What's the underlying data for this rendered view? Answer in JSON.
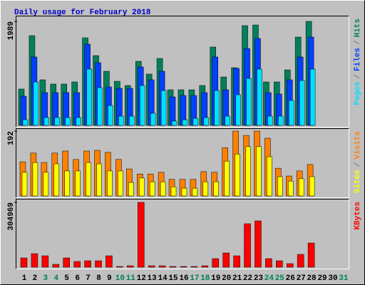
{
  "chart_data": {
    "type": "bar",
    "title": "Daily usage for February 2018",
    "categories": [
      "1",
      "2",
      "3",
      "4",
      "5",
      "6",
      "7",
      "8",
      "9",
      "10",
      "11",
      "12",
      "13",
      "14",
      "15",
      "16",
      "17",
      "18",
      "19",
      "20",
      "21",
      "22",
      "23",
      "24",
      "25",
      "26",
      "27",
      "28",
      "29",
      "30",
      "31"
    ],
    "category_colors": [
      "#000000",
      "#000000",
      "#00805c",
      "#00805c",
      "#000000",
      "#000000",
      "#000000",
      "#000000",
      "#000000",
      "#00805c",
      "#00805c",
      "#000000",
      "#000000",
      "#000000",
      "#000000",
      "#000000",
      "#00805c",
      "#00805c",
      "#000000",
      "#000000",
      "#000000",
      "#000000",
      "#000000",
      "#00805c",
      "#00805c",
      "#000000",
      "#000000",
      "#000000",
      "#000000",
      "#000000",
      "#00805c"
    ],
    "legend_separator": "/",
    "panels": [
      {
        "ylim": [
          0,
          1989
        ],
        "yticks": [
          1989
        ],
        "series": [
          {
            "name": "Hits",
            "color": "#00805c",
            "values": [
              695,
              1716,
              872,
              790,
              790,
              831,
              1675,
              1335,
              1035,
              844,
              763,
              1226,
              981,
              1280,
              681,
              681,
              681,
              763,
              1498,
              926,
              1103,
              1907,
              1920,
              831,
              831,
              1062,
              1689,
              1989,
              null,
              null,
              null
            ]
          },
          {
            "name": "Files",
            "color": "#0040ff",
            "values": [
              558,
              1308,
              627,
              627,
              627,
              627,
              1553,
              1199,
              736,
              708,
              708,
              1117,
              872,
              1035,
              545,
              572,
              572,
              627,
              1308,
              681,
              1090,
              1471,
              1662,
              627,
              599,
              872,
              1308,
              1689,
              null,
              null,
              null
            ]
          },
          {
            "name": "Pages",
            "color": "#00e0ff",
            "values": [
              109,
              831,
              150,
              150,
              150,
              150,
              1076,
              722,
              381,
              177,
              177,
              763,
              232,
              667,
              82,
              109,
              136,
              150,
              667,
              177,
              586,
              899,
              1076,
              177,
              177,
              477,
              858,
              1076,
              null,
              null,
              null
            ]
          }
        ]
      },
      {
        "ylim": [
          0,
          192
        ],
        "yticks": [
          192
        ],
        "series": [
          {
            "name": "Visits",
            "color": "#ff8000",
            "values": [
              101,
              127,
              99,
              127,
              133,
              108,
              133,
              135,
              129,
              108,
              80,
              65,
              65,
              70,
              49,
              49,
              49,
              72,
              70,
              143,
              192,
              179,
              192,
              171,
              82,
              59,
              74,
              93,
              null,
              null,
              null
            ]
          },
          {
            "name": "Sites",
            "color": "#ffff00",
            "values": [
              70,
              99,
              70,
              95,
              74,
              74,
              99,
              95,
              74,
              74,
              40,
              53,
              42,
              42,
              27,
              23,
              23,
              42,
              42,
              103,
              124,
              146,
              146,
              116,
              57,
              44,
              51,
              57,
              null,
              null,
              null
            ]
          }
        ]
      },
      {
        "ylim": [
          0,
          304969
        ],
        "yticks": [
          304969
        ],
        "series": [
          {
            "name": "KBytes",
            "color": "#ff0000",
            "values": [
              43563,
              63669,
              53616,
              13404,
              43563,
              26808,
              30159,
              30159,
              53616,
              3351,
              6702,
              304969,
              6702,
              6702,
              3351,
              3351,
              3351,
              6702,
              40212,
              67020,
              53616,
              204411,
              217815,
              40212,
              30159,
              16755,
              60318,
              113934,
              null,
              null,
              null
            ]
          }
        ]
      }
    ]
  }
}
